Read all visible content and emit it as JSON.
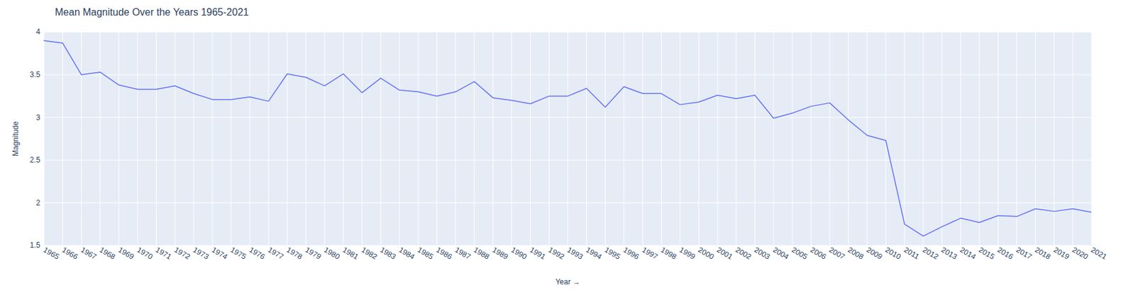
{
  "chart_data": {
    "type": "line",
    "title": "Mean Magnitude Over the Years 1965-2021",
    "x_label": "Year",
    "y_label": "Magnitude",
    "x": [
      1965,
      1966,
      1967,
      1968,
      1969,
      1970,
      1971,
      1972,
      1973,
      1974,
      1975,
      1976,
      1977,
      1978,
      1979,
      1980,
      1981,
      1982,
      1983,
      1984,
      1985,
      1986,
      1987,
      1988,
      1989,
      1990,
      1991,
      1992,
      1993,
      1994,
      1995,
      1996,
      1997,
      1998,
      1999,
      2000,
      2001,
      2002,
      2003,
      2004,
      2005,
      2006,
      2007,
      2008,
      2009,
      2010,
      2011,
      2012,
      2013,
      2014,
      2015,
      2016,
      2017,
      2018,
      2019,
      2020,
      2021
    ],
    "values": [
      3.9,
      3.87,
      3.5,
      3.53,
      3.38,
      3.33,
      3.33,
      3.37,
      3.28,
      3.21,
      3.21,
      3.24,
      3.19,
      3.51,
      3.47,
      3.37,
      3.51,
      3.29,
      3.46,
      3.32,
      3.3,
      3.25,
      3.3,
      3.42,
      3.23,
      3.2,
      3.16,
      3.25,
      3.25,
      3.34,
      3.12,
      3.36,
      3.28,
      3.28,
      3.15,
      3.18,
      3.26,
      3.22,
      3.26,
      2.99,
      3.05,
      3.13,
      3.17,
      2.97,
      2.79,
      2.73,
      1.75,
      1.61,
      1.72,
      1.82,
      1.77,
      1.85,
      1.84,
      1.93,
      1.9,
      1.93,
      1.89
    ],
    "color": "#636efa",
    "xlim": [
      1965,
      2021
    ],
    "xticks": [
      1965,
      1966,
      1967,
      1968,
      1969,
      1970,
      1971,
      1972,
      1973,
      1974,
      1975,
      1976,
      1977,
      1978,
      1979,
      1980,
      1981,
      1982,
      1983,
      1984,
      1985,
      1986,
      1987,
      1988,
      1989,
      1990,
      1991,
      1992,
      1993,
      1994,
      1995,
      1996,
      1997,
      1998,
      1999,
      2000,
      2001,
      2002,
      2003,
      2004,
      2005,
      2006,
      2007,
      2008,
      2009,
      2010,
      2011,
      2012,
      2013,
      2014,
      2015,
      2016,
      2017,
      2018,
      2019,
      2020,
      2021
    ],
    "ylim": [
      1.5,
      4
    ],
    "yticks": [
      1.5,
      2,
      2.5,
      3,
      3.5,
      4
    ],
    "grid": true
  }
}
